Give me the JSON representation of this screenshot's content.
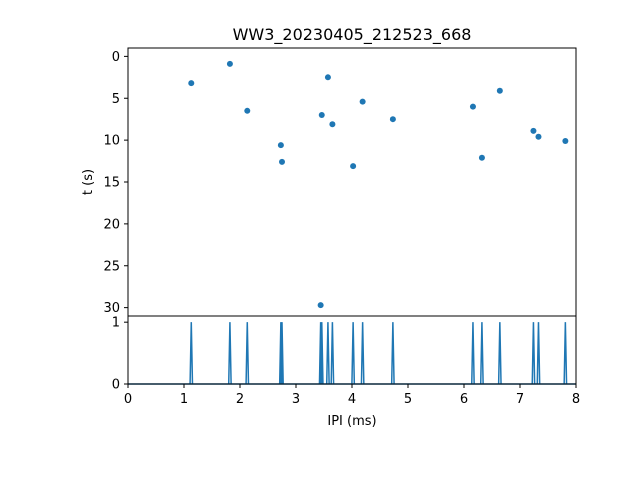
{
  "chart_data": [
    {
      "type": "scatter",
      "title": "WW3_20230405_212523_668",
      "xlabel": "",
      "ylabel": "t (s)",
      "xlim": [
        0,
        8
      ],
      "ylim": [
        31,
        -1
      ],
      "y_inverted": true,
      "y_ticks": [
        "0",
        "5",
        "10",
        "15",
        "20",
        "25",
        "30"
      ],
      "x_ticks_visible": false,
      "marker_color": "#1f77b4",
      "grid": false,
      "points": [
        {
          "x": 1.13,
          "y": 3.2
        },
        {
          "x": 1.82,
          "y": 0.9
        },
        {
          "x": 2.13,
          "y": 6.5
        },
        {
          "x": 2.73,
          "y": 10.6
        },
        {
          "x": 2.75,
          "y": 12.6
        },
        {
          "x": 3.44,
          "y": 29.7
        },
        {
          "x": 3.46,
          "y": 7.0
        },
        {
          "x": 3.57,
          "y": 2.5
        },
        {
          "x": 3.65,
          "y": 8.1
        },
        {
          "x": 4.02,
          "y": 13.1
        },
        {
          "x": 4.19,
          "y": 5.4
        },
        {
          "x": 4.73,
          "y": 7.5
        },
        {
          "x": 6.16,
          "y": 6.0
        },
        {
          "x": 6.32,
          "y": 12.1
        },
        {
          "x": 6.64,
          "y": 4.1
        },
        {
          "x": 7.24,
          "y": 8.9
        },
        {
          "x": 7.33,
          "y": 9.6
        },
        {
          "x": 7.81,
          "y": 10.1
        }
      ]
    },
    {
      "type": "line",
      "title": "",
      "xlabel": "IPI (ms)",
      "ylabel": "",
      "xlim": [
        0,
        8
      ],
      "ylim": [
        0,
        1.1
      ],
      "x_ticks": [
        "0",
        "1",
        "2",
        "3",
        "4",
        "5",
        "6",
        "7",
        "8"
      ],
      "y_ticks": [
        "0",
        "1"
      ],
      "line_color": "#1f77b4",
      "grid": false,
      "spikes": [
        1.13,
        1.82,
        2.13,
        2.73,
        2.75,
        3.44,
        3.46,
        3.57,
        3.65,
        4.02,
        4.19,
        4.73,
        6.16,
        6.32,
        6.64,
        7.24,
        7.33,
        7.81
      ],
      "spike_height": 1.0
    }
  ]
}
